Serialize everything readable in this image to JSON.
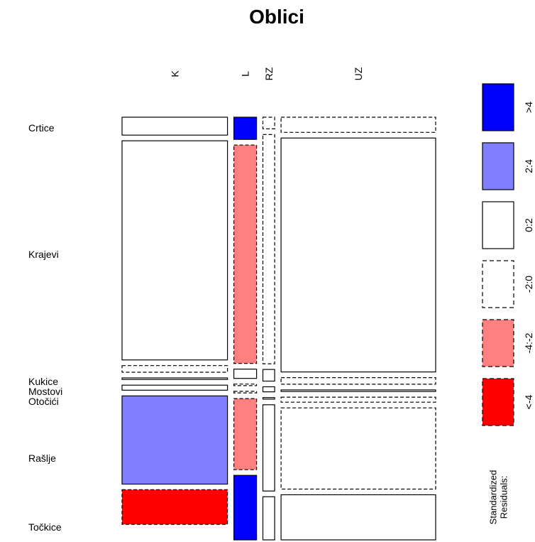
{
  "chart_data": {
    "type": "mosaic",
    "title": "Oblici",
    "col_categories": [
      "K",
      "L",
      "RZ",
      "UZ"
    ],
    "row_categories": [
      "Crtice",
      "Krajevi",
      "Kukice",
      "Mostovi",
      "Otočići",
      "Rašlje",
      "Točkice"
    ],
    "column_proportions": [
      0.358,
      0.077,
      0.04,
      0.525
    ],
    "cells": {
      "K": {
        "Crtice": 0.046,
        "Krajevi": 0.564,
        "Kukice": 0.017,
        "Mostovi": 0.004,
        "Otočići": 0.013,
        "Rašlje": 0.227,
        "Točkice": 0.089
      },
      "L": {
        "Crtice": 0.057,
        "Krajevi": 0.562,
        "Kukice": 0.024,
        "Mostovi": 0.004,
        "Otočići": 0.004,
        "Rašlje": 0.183,
        "Točkice": 0.166
      },
      "RZ": {
        "Crtice": 0.03,
        "Krajevi": 0.59,
        "Kukice": 0.03,
        "Mostovi": 0.013,
        "Otočići": 0.004,
        "Rašlje": 0.222,
        "Točkice": 0.111
      },
      "UZ": {
        "Crtice": 0.039,
        "Krajevi": 0.602,
        "Kukice": 0.017,
        "Mostovi": 0.004,
        "Otočići": 0.013,
        "Rašlje": 0.209,
        "Točkice": 0.116
      }
    },
    "residual_class": {
      "K": {
        "Crtice": "0:2",
        "Krajevi": "0:2",
        "Kukice": "-2:0",
        "Mostovi": "0:2",
        "Otočići": "0:2",
        "Rašlje": "2:4",
        "Točkice": "<-4"
      },
      "L": {
        "Crtice": ">4",
        "Krajevi": "-4:-2",
        "Kukice": "0:2",
        "Mostovi": "-2:0",
        "Otočići": "-2:0",
        "Rašlje": "-4:-2",
        "Točkice": ">4"
      },
      "RZ": {
        "Crtice": "-2:0",
        "Krajevi": "-2:0",
        "Kukice": "0:2",
        "Mostovi": "0:2",
        "Otočići": "0:2",
        "Rašlje": "0:2",
        "Točkice": "0:2"
      },
      "UZ": {
        "Crtice": "-2:0",
        "Krajevi": "0:2",
        "Kukice": "-2:0",
        "Mostovi": "0:2",
        "Otočići": "-2:0",
        "Rašlje": "-2:0",
        "Točkice": "0:2"
      }
    },
    "legend": {
      "title": "Standardized\nResiduals:",
      "entries": [
        {
          "label": ">4",
          "color": "#0000ff",
          "dashed": false
        },
        {
          "label": "2:4",
          "color": "#8080ff",
          "dashed": false
        },
        {
          "label": "0:2",
          "color": "#ffffff",
          "dashed": false
        },
        {
          "label": "-2:0",
          "color": "#ffffff",
          "dashed": true
        },
        {
          "label": "-4:-2",
          "color": "#ff8080",
          "dashed": true
        },
        {
          "label": "<-4",
          "color": "#ff0000",
          "dashed": true
        }
      ]
    }
  }
}
